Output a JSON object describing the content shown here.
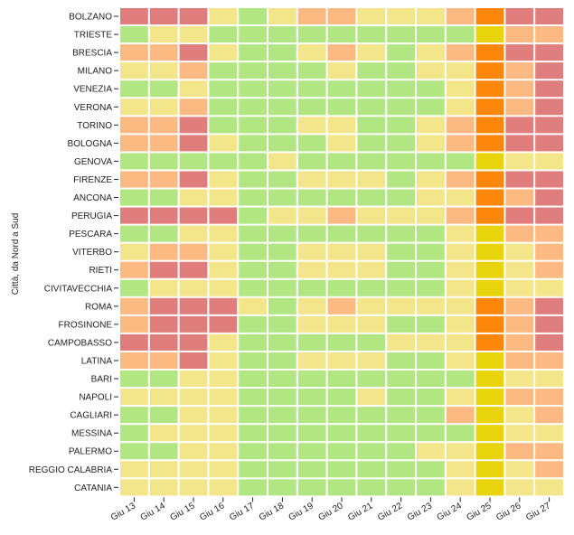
{
  "chart_data": {
    "type": "heatmap",
    "ylabel": "Città, da Nord a Sud",
    "xlabel": "",
    "title": "",
    "x_categories": [
      "Giu 13",
      "Giu 14",
      "Giu 15",
      "Giu 16",
      "Giu 17",
      "Giu 18",
      "Giu 19",
      "Giu 20",
      "Giu 21",
      "Giu 22",
      "Giu 23",
      "Giu 24",
      "Giu 25",
      "Giu 26",
      "Giu 27"
    ],
    "y_categories": [
      "BOLZANO",
      "TRIESTE",
      "BRESCIA",
      "MILANO",
      "VENEZIA",
      "VERONA",
      "TORINO",
      "BOLOGNA",
      "GENOVA",
      "FIRENZE",
      "ANCONA",
      "PERUGIA",
      "PESCARA",
      "VITERBO",
      "RIETI",
      "CIVITAVECCHIA",
      "ROMA",
      "FROSINONE",
      "CAMPOBASSO",
      "LATINA",
      "BARI",
      "NAPOLI",
      "CAGLIARI",
      "MESSINA",
      "PALERMO",
      "REGGIO CALABRIA",
      "CATANIA"
    ],
    "level_colors": {
      "0": "#b1e683",
      "1": "#f3e68a",
      "2": "#fcb982",
      "3": "#e07e7e",
      "4": "#e8d40a",
      "5": "#fd870a"
    },
    "grid": false,
    "legend": "none",
    "values": [
      [
        3,
        3,
        3,
        1,
        0,
        1,
        2,
        2,
        1,
        1,
        1,
        2,
        5,
        3,
        3
      ],
      [
        0,
        1,
        1,
        0,
        0,
        0,
        0,
        0,
        0,
        0,
        0,
        0,
        4,
        2,
        2
      ],
      [
        2,
        2,
        3,
        1,
        0,
        0,
        1,
        2,
        1,
        0,
        1,
        2,
        5,
        3,
        3
      ],
      [
        1,
        1,
        2,
        0,
        0,
        0,
        0,
        1,
        0,
        0,
        1,
        1,
        5,
        2,
        3
      ],
      [
        0,
        0,
        1,
        0,
        0,
        0,
        0,
        0,
        0,
        0,
        0,
        1,
        5,
        2,
        3
      ],
      [
        1,
        1,
        2,
        0,
        0,
        0,
        0,
        0,
        0,
        0,
        0,
        1,
        5,
        2,
        3
      ],
      [
        2,
        2,
        3,
        0,
        0,
        0,
        1,
        1,
        0,
        0,
        1,
        2,
        5,
        3,
        3
      ],
      [
        2,
        2,
        3,
        1,
        0,
        0,
        0,
        1,
        0,
        0,
        1,
        2,
        5,
        3,
        3
      ],
      [
        0,
        0,
        0,
        0,
        0,
        1,
        0,
        0,
        0,
        0,
        0,
        0,
        4,
        1,
        1
      ],
      [
        2,
        2,
        3,
        1,
        0,
        0,
        1,
        1,
        1,
        0,
        1,
        2,
        5,
        3,
        3
      ],
      [
        0,
        0,
        1,
        1,
        0,
        0,
        0,
        0,
        0,
        0,
        1,
        1,
        5,
        2,
        3
      ],
      [
        3,
        3,
        3,
        3,
        0,
        1,
        1,
        2,
        1,
        1,
        1,
        2,
        5,
        3,
        3
      ],
      [
        0,
        0,
        1,
        1,
        0,
        0,
        0,
        0,
        0,
        0,
        0,
        1,
        4,
        2,
        2
      ],
      [
        1,
        2,
        2,
        1,
        0,
        0,
        1,
        1,
        1,
        0,
        0,
        1,
        4,
        1,
        2
      ],
      [
        2,
        3,
        3,
        1,
        0,
        0,
        1,
        1,
        1,
        0,
        0,
        1,
        4,
        1,
        2
      ],
      [
        0,
        1,
        1,
        1,
        0,
        0,
        0,
        0,
        0,
        0,
        0,
        1,
        4,
        1,
        1
      ],
      [
        2,
        3,
        3,
        3,
        1,
        0,
        1,
        2,
        1,
        1,
        1,
        1,
        5,
        2,
        3
      ],
      [
        2,
        3,
        3,
        3,
        0,
        0,
        1,
        1,
        1,
        0,
        0,
        1,
        5,
        2,
        3
      ],
      [
        3,
        3,
        3,
        1,
        0,
        0,
        0,
        0,
        0,
        1,
        1,
        1,
        5,
        2,
        3
      ],
      [
        2,
        2,
        3,
        1,
        0,
        0,
        1,
        1,
        1,
        0,
        0,
        1,
        4,
        2,
        2
      ],
      [
        0,
        0,
        1,
        1,
        0,
        0,
        0,
        0,
        0,
        0,
        0,
        0,
        4,
        1,
        1
      ],
      [
        1,
        1,
        1,
        1,
        0,
        0,
        0,
        0,
        1,
        0,
        0,
        1,
        4,
        2,
        2
      ],
      [
        0,
        0,
        1,
        1,
        0,
        0,
        0,
        0,
        0,
        0,
        0,
        2,
        4,
        1,
        2
      ],
      [
        0,
        1,
        1,
        1,
        0,
        0,
        0,
        0,
        0,
        0,
        0,
        0,
        4,
        1,
        1
      ],
      [
        0,
        0,
        1,
        1,
        0,
        0,
        0,
        0,
        0,
        0,
        1,
        1,
        4,
        2,
        2
      ],
      [
        1,
        1,
        1,
        1,
        0,
        0,
        0,
        0,
        0,
        0,
        0,
        1,
        4,
        1,
        2
      ],
      [
        1,
        1,
        1,
        1,
        0,
        0,
        0,
        0,
        0,
        0,
        0,
        1,
        4,
        1,
        1
      ]
    ]
  }
}
